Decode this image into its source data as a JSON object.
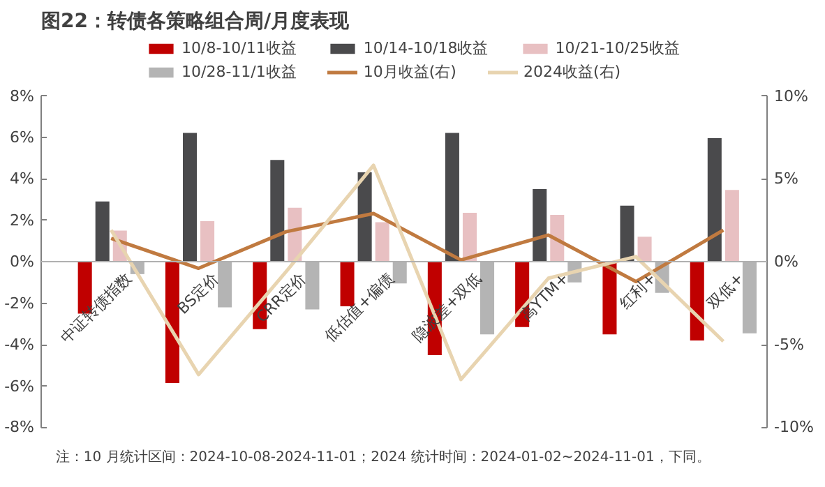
{
  "chart_data": {
    "type": "bar",
    "title": "图22：转债各策略组合周/月度表现",
    "categories": [
      "中证转债指数",
      "BS定价",
      "CRR定价",
      "低估值+偏债",
      "隐波差+双低",
      "高YTM+",
      "红利+",
      "双低+"
    ],
    "series": [
      {
        "name": "10/8-10/11收益",
        "color": "#c00000",
        "values": [
          -2.5,
          -5.85,
          -3.25,
          -2.15,
          -4.5,
          -3.15,
          -3.5,
          -3.8
        ]
      },
      {
        "name": "10/14-10/18收益",
        "color": "#4a4a4c",
        "values": [
          2.9,
          6.2,
          4.9,
          4.3,
          6.2,
          3.5,
          2.7,
          5.95
        ]
      },
      {
        "name": "10/21-10/25收益",
        "color": "#e8c0c2",
        "values": [
          1.5,
          1.95,
          2.6,
          1.9,
          2.35,
          2.25,
          1.2,
          3.45
        ]
      },
      {
        "name": "10/28-11/1收益",
        "color": "#b4b4b4",
        "values": [
          -0.6,
          -2.2,
          -2.3,
          -1.05,
          -3.5,
          -1.0,
          -1.5,
          -3.45
        ]
      },
      {
        "name": "10月收益(右)",
        "type": "line",
        "axis": "y2",
        "color": "#c07a40",
        "values": [
          1.4,
          -0.4,
          1.8,
          2.9,
          0.1,
          1.6,
          -1.2,
          1.9
        ]
      },
      {
        "name": "2024收益(右)",
        "type": "line",
        "axis": "y2",
        "color": "#e8d4b0",
        "values": [
          1.9,
          -6.8,
          -0.6,
          5.8,
          -7.1,
          -1.0,
          0.3,
          -4.8
        ]
      }
    ],
    "ylim": [
      -8,
      8
    ],
    "yticks": [
      {
        "value": -8,
        "label": "-8%"
      },
      {
        "value": -6,
        "label": "-6%"
      },
      {
        "value": -4,
        "label": "-4%"
      },
      {
        "value": -2,
        "label": "-2%"
      },
      {
        "value": 0,
        "label": "0%"
      },
      {
        "value": 2,
        "label": "2%"
      },
      {
        "value": 4,
        "label": "4%"
      },
      {
        "value": 6,
        "label": "6%"
      },
      {
        "value": 8,
        "label": "8%"
      }
    ],
    "y2lim": [
      -10,
      10
    ],
    "y2ticks": [
      {
        "value": -10,
        "label": "-10%"
      },
      {
        "value": -5,
        "label": "-5%"
      },
      {
        "value": 0,
        "label": "0%"
      },
      {
        "value": 5,
        "label": "5%"
      },
      {
        "value": 10,
        "label": "10%"
      }
    ],
    "legend": "top",
    "grid": false,
    "annotations": [
      "注：10 月统计区间：2024-10-08-2024-11-01；2024 统计时间：2024-01-02~2024-11-01，下同。"
    ]
  }
}
